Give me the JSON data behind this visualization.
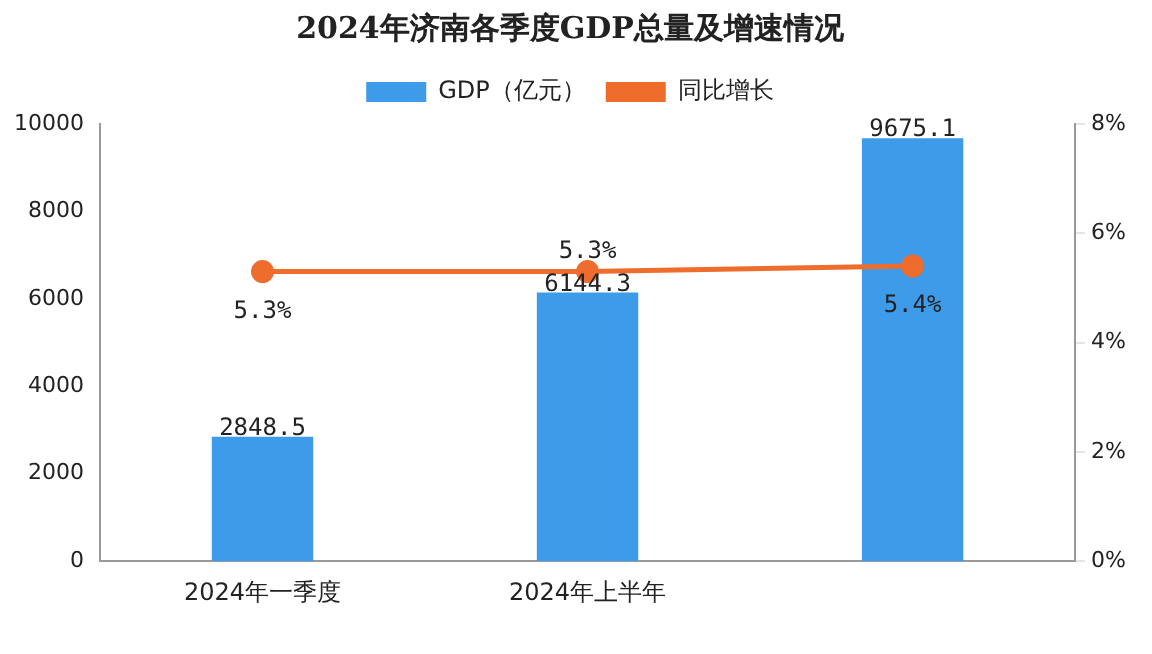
{
  "chart_data": {
    "type": "bar",
    "title": "2024年济南各季度GDP总量及增速情况",
    "categories": [
      "2024年一季度",
      "2024年上半年",
      null
    ],
    "series": [
      {
        "name": "GDP（亿元）",
        "color": "#3d9be9",
        "values": [
          2848.5,
          6144.3,
          9675.1
        ]
      },
      {
        "name": "同比增长",
        "type": "line",
        "axis": "y2",
        "color": "#ee6c2c",
        "values": [
          5.3,
          5.3,
          5.4
        ],
        "value_labels": [
          "5.3%",
          "5.3%",
          "5.4%"
        ]
      }
    ],
    "value_labels": [
      "2848.5",
      "6144.3",
      "9675.1"
    ],
    "ylim": [
      0,
      10000
    ],
    "yticks": [
      0,
      2000,
      4000,
      6000,
      8000,
      10000
    ],
    "y2lim": [
      0,
      8
    ],
    "y2ticks": [
      {
        "value": 0,
        "label": "0%"
      },
      {
        "value": 2,
        "label": "2%"
      },
      {
        "value": 4,
        "label": "4%"
      },
      {
        "value": 6,
        "label": "6%"
      },
      {
        "value": 8,
        "label": "8%"
      }
    ],
    "grid": false,
    "legend": "top",
    "marker": "circle"
  }
}
